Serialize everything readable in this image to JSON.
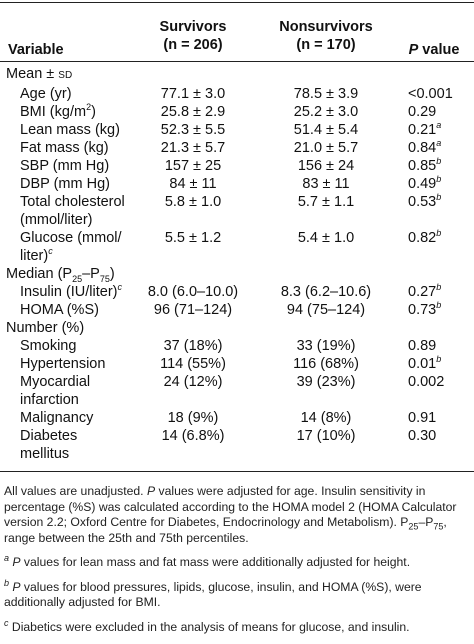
{
  "header": {
    "variable": "Variable",
    "survivors_line1": "Survivors",
    "survivors_line2": "(n = 206)",
    "nonsurvivors_line1": "Nonsurvivors",
    "nonsurvivors_line2": "(n = 170)",
    "p_label_italic": "P",
    "p_label_rest": " value"
  },
  "sections": {
    "mean": {
      "label": "Mean ± ",
      "label_sc": "SD"
    },
    "median": {
      "label": "Median (P",
      "sub1": "25",
      "mid": "–P",
      "sub2": "75",
      "end": ")"
    },
    "number": {
      "label": "Number (%)"
    }
  },
  "rows": {
    "age": {
      "label": "Age (yr)",
      "s": "77.1 ± 3.0",
      "n": "78.5 ± 3.9",
      "p": "<0.001"
    },
    "bmi": {
      "label": "BMI (kg/m",
      "label_sup": "2",
      "label_end": ")",
      "s": "25.8 ± 2.9",
      "n": "25.2 ± 3.0",
      "p": "0.29"
    },
    "lean": {
      "label": "Lean mass (kg)",
      "s": "52.3 ± 5.5",
      "n": "51.4 ± 5.4",
      "p": "0.21",
      "p_sup": "a"
    },
    "fat": {
      "label": "Fat mass (kg)",
      "s": "21.3 ± 5.7",
      "n": "21.0 ± 5.7",
      "p": "0.84",
      "p_sup": "a"
    },
    "sbp": {
      "label": "SBP (mm Hg)",
      "s": "157 ± 25",
      "n": "156 ± 24",
      "p": "0.85",
      "p_sup": "b"
    },
    "dbp": {
      "label": "DBP (mm Hg)",
      "s": "84 ± 11",
      "n": "83 ± 11",
      "p": "0.49",
      "p_sup": "b"
    },
    "chol": {
      "label1": "Total cholesterol",
      "label2": "(mmol/liter)",
      "s": "5.8 ± 1.0",
      "n": "5.7 ± 1.1",
      "p": "0.53",
      "p_sup": "b"
    },
    "glucose": {
      "label1": "Glucose (mmol/",
      "label2": "liter)",
      "label_sup": "c",
      "s": "5.5 ± 1.2",
      "n": "5.4 ± 1.0",
      "p": "0.82",
      "p_sup": "b"
    },
    "insulin": {
      "label": "Insulin (IU/liter)",
      "label_sup": "c",
      "s": "8.0 (6.0–10.0)",
      "n": "8.3 (6.2–10.6)",
      "p": "0.27",
      "p_sup": "b"
    },
    "homa": {
      "label": "HOMA (%S)",
      "s": "96 (71–124)",
      "n": "94 (75–124)",
      "p": "0.73",
      "p_sup": "b"
    },
    "smoking": {
      "label": "Smoking",
      "s": "37 (18%)",
      "n": "33 (19%)",
      "p": "0.89"
    },
    "hypertension": {
      "label": "Hypertension",
      "s": "114 (55%)",
      "n": "116 (68%)",
      "p": "0.01",
      "p_sup": "b"
    },
    "mi": {
      "label1": "Myocardial",
      "label2": "infarction",
      "s": "24 (12%)",
      "n": "39 (23%)",
      "p": "0.002"
    },
    "malignancy": {
      "label": "Malignancy",
      "s": "18 (9%)",
      "n": "14 (8%)",
      "p": "0.91"
    },
    "diabetes": {
      "label": "Diabetes mellitus",
      "s": "14 (6.8%)",
      "n": "17 (10%)",
      "p": "0.30"
    }
  },
  "notes": {
    "n1_a": "All values are unadjusted. ",
    "n1_p": "P",
    "n1_b": " values were adjusted for age. Insulin sensitivity in percentage (%S) was calculated according to the HOMA model 2 (HOMA Calculator version 2.2; Oxford Centre for Diabetes, Endocrinology and Metabolism). P",
    "n1_sub1": "25",
    "n1_c": "–P",
    "n1_sub2": "75",
    "n1_d": ", range between the 25th and 75th percentiles.",
    "n2_sup": "a",
    "n2_p": "P",
    "n2_text": " values for lean mass and fat mass were additionally adjusted for height.",
    "n3_sup": "b",
    "n3_p": "P",
    "n3_text": " values for blood pressures, lipids, glucose, insulin, and HOMA (%S), were additionally adjusted for BMI.",
    "n4_sup": "c",
    "n4_text": " Diabetics were excluded in the analysis of means for glucose, and insulin."
  }
}
